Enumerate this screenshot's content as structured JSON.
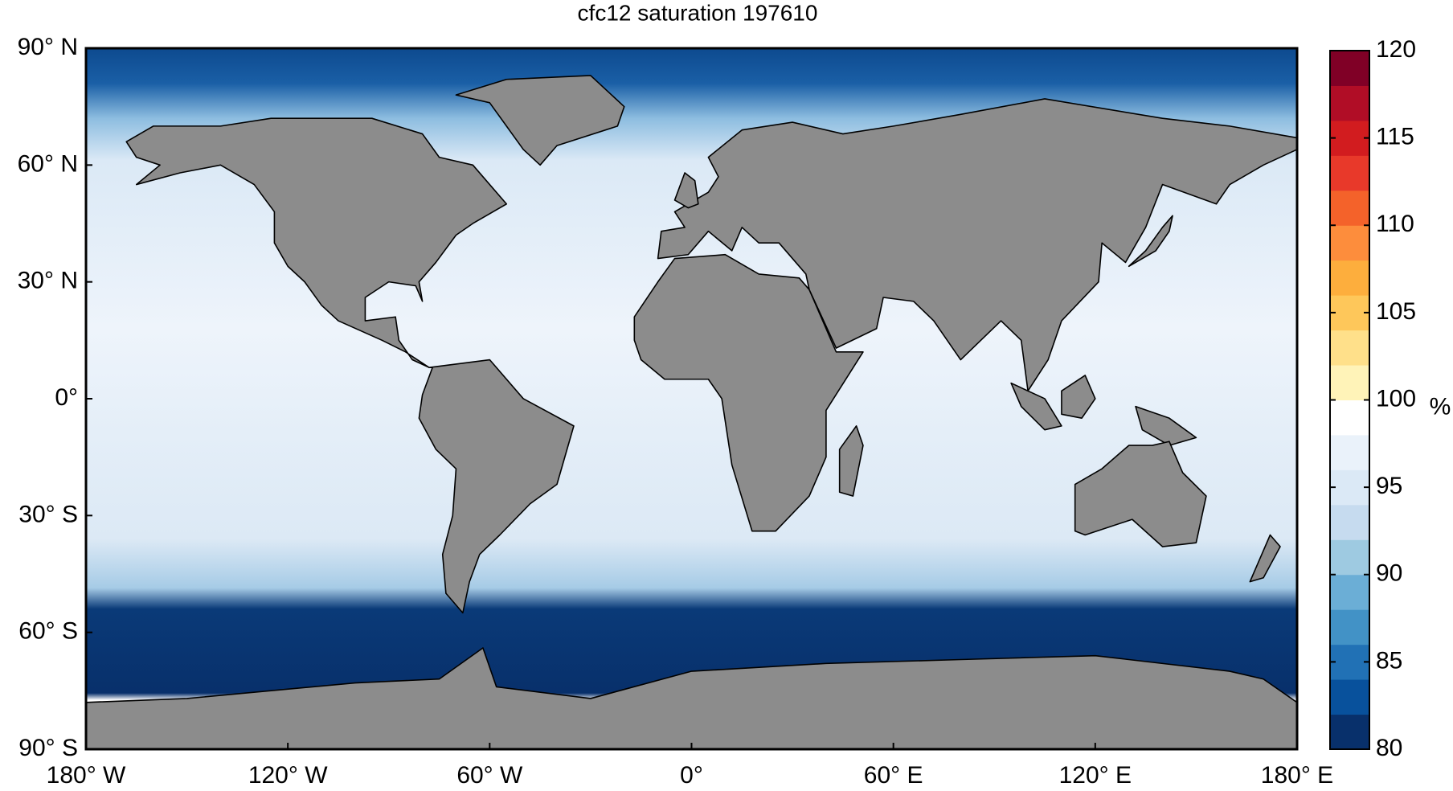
{
  "chart_data": {
    "type": "map",
    "title": "cfc12 saturation 197610",
    "xlim": [
      -180,
      180
    ],
    "ylim": [
      -90,
      90
    ],
    "xticks": [
      {
        "value": -180,
        "label": "180° W"
      },
      {
        "value": -120,
        "label": "120° W"
      },
      {
        "value": -60,
        "label": "60° W"
      },
      {
        "value": 0,
        "label": "0°"
      },
      {
        "value": 60,
        "label": "60° E"
      },
      {
        "value": 120,
        "label": "120° E"
      },
      {
        "value": 180,
        "label": "180° E"
      }
    ],
    "yticks": [
      {
        "value": -90,
        "label": "90° S"
      },
      {
        "value": -60,
        "label": "60° S"
      },
      {
        "value": -30,
        "label": "30° S"
      },
      {
        "value": 0,
        "label": "0°"
      },
      {
        "value": 30,
        "label": "30° N"
      },
      {
        "value": 60,
        "label": "60° N"
      },
      {
        "value": 90,
        "label": "90° N"
      }
    ],
    "colorbar": {
      "label": "%",
      "clim": [
        80,
        120
      ],
      "ticks": [
        80,
        85,
        90,
        95,
        100,
        105,
        110,
        115,
        120
      ],
      "colors": [
        "#08306b",
        "#08519c",
        "#2171b5",
        "#4292c6",
        "#6baed6",
        "#9ecae1",
        "#c6dbef",
        "#dbe9f6",
        "#eaf2fa",
        "#ffffff",
        "#fff3b8",
        "#ffe08a",
        "#fec75a",
        "#fdae3d",
        "#fd8d3c",
        "#f4622a",
        "#e8392a",
        "#d21c1f",
        "#b10d26",
        "#800026"
      ]
    }
  }
}
